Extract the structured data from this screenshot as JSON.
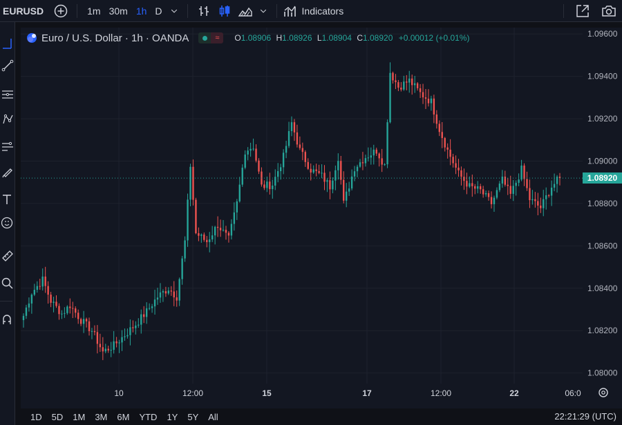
{
  "toolbar": {
    "symbol": "EURUSD",
    "timeframes": [
      "1m",
      "30m",
      "1h",
      "D"
    ],
    "active_timeframe": "1h",
    "indicators_label": "Indicators"
  },
  "legend": {
    "title": "Euro / U.S. Dollar · 1h · OANDA",
    "open_key": "O",
    "open": "1.08906",
    "high_key": "H",
    "high": "1.08926",
    "low_key": "L",
    "low": "1.08904",
    "close_key": "C",
    "close": "1.08920",
    "change": "+0.00012 (+0.01%)",
    "up_color": "#26a69a",
    "down_color": "#ef5350"
  },
  "price_tag": "1.08920",
  "chart_data": {
    "type": "candlestick",
    "y_ticks": [
      "1.09600",
      "1.09400",
      "1.09200",
      "1.09000",
      "1.08800",
      "1.08600",
      "1.08400",
      "1.08200",
      "1.08000"
    ],
    "x_ticks": [
      "10",
      "12:00",
      "15",
      "17",
      "12:00",
      "22",
      "06:0"
    ],
    "ylim": [
      1.0795,
      1.0963
    ],
    "last_price": 1.0892,
    "anchors": [
      [
        0,
        1.0827
      ],
      [
        3,
        1.0838
      ],
      [
        7,
        1.0844
      ],
      [
        10,
        1.0834
      ],
      [
        14,
        1.0828
      ],
      [
        17,
        1.0832
      ],
      [
        21,
        1.0825
      ],
      [
        25,
        1.082
      ],
      [
        29,
        1.081
      ],
      [
        33,
        1.0813
      ],
      [
        37,
        1.0818
      ],
      [
        41,
        1.0823
      ],
      [
        45,
        1.0829
      ],
      [
        49,
        1.0836
      ],
      [
        53,
        1.084
      ],
      [
        56,
        1.0836
      ],
      [
        59,
        1.0862
      ],
      [
        61,
        1.0898
      ],
      [
        63,
        1.0866
      ],
      [
        67,
        1.0862
      ],
      [
        71,
        1.087
      ],
      [
        75,
        1.0863
      ],
      [
        78,
        1.088
      ],
      [
        81,
        1.0905
      ],
      [
        84,
        1.0907
      ],
      [
        87,
        1.0888
      ],
      [
        91,
        1.0889
      ],
      [
        95,
        1.0902
      ],
      [
        98,
        1.0918
      ],
      [
        101,
        1.0905
      ],
      [
        105,
        1.0896
      ],
      [
        109,
        1.0893
      ],
      [
        112,
        1.0888
      ],
      [
        115,
        1.0902
      ],
      [
        117,
        1.088
      ],
      [
        121,
        1.0897
      ],
      [
        125,
        1.0902
      ],
      [
        129,
        1.0905
      ],
      [
        132,
        1.0898
      ],
      [
        134,
        1.0942
      ],
      [
        137,
        1.0935
      ],
      [
        141,
        1.0938
      ],
      [
        145,
        1.0932
      ],
      [
        149,
        1.0928
      ],
      [
        152,
        1.0915
      ],
      [
        155,
        1.0905
      ],
      [
        159,
        1.0894
      ],
      [
        163,
        1.0888
      ],
      [
        167,
        1.0886
      ],
      [
        171,
        1.088
      ],
      [
        175,
        1.0891
      ],
      [
        178,
        1.0884
      ],
      [
        182,
        1.0896
      ],
      [
        185,
        1.0882
      ],
      [
        189,
        1.0878
      ],
      [
        193,
        1.0888
      ],
      [
        196,
        1.0892
      ]
    ]
  },
  "bottom": {
    "ranges": [
      "1D",
      "5D",
      "1M",
      "3M",
      "6M",
      "YTD",
      "1Y",
      "5Y",
      "All"
    ],
    "clock": "22:21:29 (UTC)"
  }
}
